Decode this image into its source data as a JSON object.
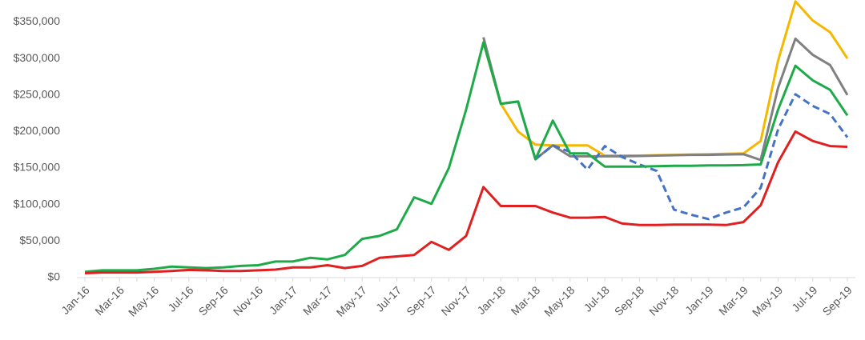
{
  "chart_data": {
    "type": "line",
    "categories": [
      "Jan-16",
      null,
      "Mar-16",
      null,
      "May-16",
      null,
      "Jul-16",
      null,
      "Sep-16",
      null,
      "Nov-16",
      null,
      "Jan-17",
      null,
      "Mar-17",
      null,
      "May-17",
      null,
      "Jul-17",
      null,
      "Sep-17",
      null,
      "Nov-17",
      null,
      "Jan-18",
      null,
      "Mar-18",
      null,
      "May-18",
      null,
      "Jul-18",
      null,
      "Sep-18",
      null,
      "Nov-18",
      null,
      "Jan-19",
      null,
      "Mar-19",
      null,
      "May-19",
      null,
      "Jul-19",
      null,
      "Sep-19"
    ],
    "series": [
      {
        "color": "#f5b800",
        "dashed": false,
        "values": [
          null,
          null,
          null,
          null,
          null,
          null,
          null,
          null,
          null,
          null,
          null,
          null,
          null,
          null,
          null,
          null,
          null,
          null,
          null,
          null,
          null,
          null,
          null,
          322000,
          238000,
          200000,
          182000,
          181000,
          181000,
          181000,
          167000,
          167000,
          167000,
          167500,
          168000,
          168500,
          169000,
          169500,
          170000,
          187000,
          297000,
          378000,
          352000,
          336000,
          300000
        ]
      },
      {
        "color": "#808080",
        "dashed": false,
        "values": [
          null,
          null,
          null,
          null,
          null,
          null,
          null,
          null,
          null,
          null,
          null,
          null,
          null,
          null,
          null,
          null,
          null,
          null,
          null,
          null,
          null,
          null,
          null,
          329000,
          238000,
          241000,
          162000,
          181000,
          166000,
          166000,
          166000,
          166000,
          166500,
          167000,
          167500,
          168000,
          168000,
          168500,
          169000,
          161000,
          260000,
          327000,
          305000,
          291000,
          250000
        ]
      },
      {
        "color": "#4472c4",
        "dashed": true,
        "values": [
          null,
          null,
          null,
          null,
          null,
          null,
          null,
          null,
          null,
          null,
          null,
          null,
          null,
          null,
          null,
          null,
          null,
          null,
          null,
          null,
          null,
          null,
          null,
          null,
          null,
          null,
          162000,
          181000,
          172000,
          148000,
          180000,
          165000,
          155000,
          146000,
          93000,
          86000,
          80000,
          89000,
          96000,
          123000,
          203000,
          251000,
          235000,
          224000,
          192000
        ]
      },
      {
        "color": "#1faa4a",
        "dashed": false,
        "values": [
          8000,
          10000,
          10000,
          10000,
          12000,
          15000,
          14000,
          13000,
          14000,
          16000,
          17000,
          22000,
          22000,
          27000,
          25000,
          31000,
          53000,
          57000,
          66000,
          110000,
          101000,
          150000,
          230000,
          322000,
          238000,
          241000,
          162000,
          215000,
          170000,
          170000,
          152000,
          152000,
          152000,
          152500,
          153000,
          153000,
          153500,
          153500,
          154000,
          155000,
          230000,
          290000,
          270000,
          257000,
          222000
        ]
      },
      {
        "color": "#e02020",
        "dashed": false,
        "values": [
          6000,
          7000,
          7000,
          7000,
          8000,
          9000,
          10500,
          10000,
          9000,
          9000,
          10000,
          11000,
          14000,
          14000,
          17000,
          13000,
          16000,
          27000,
          29000,
          31000,
          49000,
          38000,
          57000,
          124000,
          98000,
          98000,
          98000,
          89000,
          82000,
          82000,
          83000,
          74000,
          72000,
          72000,
          72500,
          72500,
          72500,
          72000,
          76000,
          99000,
          158000,
          200000,
          187000,
          180000,
          179000
        ]
      }
    ],
    "ylim": [
      0,
      380000
    ],
    "yticks": [
      {
        "value": 0,
        "label": "$0"
      },
      {
        "value": 50000,
        "label": "$50,000"
      },
      {
        "value": 100000,
        "label": "$100,000"
      },
      {
        "value": 150000,
        "label": "$150,000"
      },
      {
        "value": 200000,
        "label": "$200,000"
      },
      {
        "value": 250000,
        "label": "$250,000"
      },
      {
        "value": 300000,
        "label": "$300,000"
      },
      {
        "value": 350000,
        "label": "$350,000"
      }
    ],
    "grid": false
  }
}
